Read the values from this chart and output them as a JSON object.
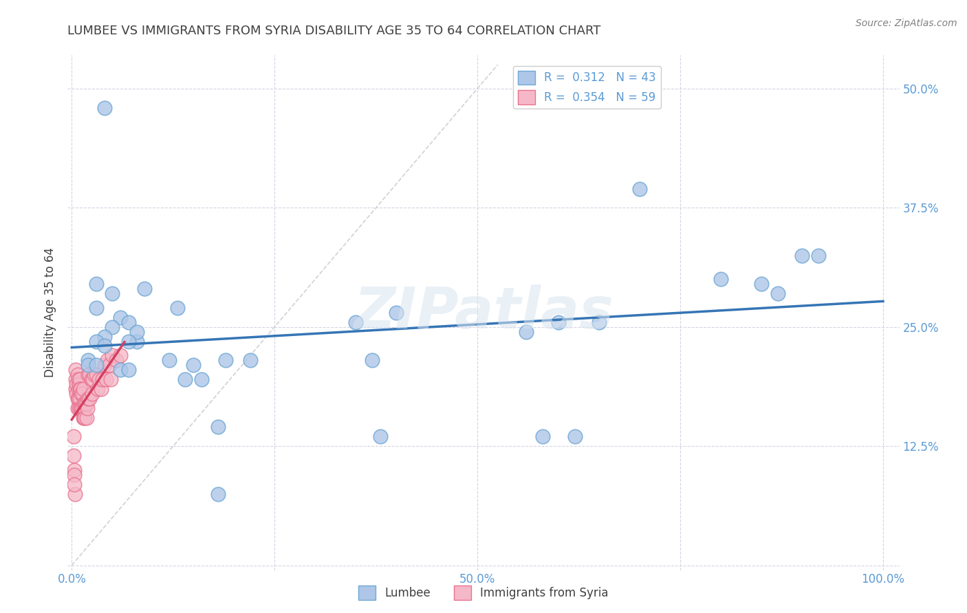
{
  "title": "LUMBEE VS IMMIGRANTS FROM SYRIA DISABILITY AGE 35 TO 64 CORRELATION CHART",
  "source": "Source: ZipAtlas.com",
  "ylabel": "Disability Age 35 to 64",
  "xlim": [
    0.0,
    1.0
  ],
  "ylim": [
    0.0,
    0.525
  ],
  "ytick_vals": [
    0.0,
    0.125,
    0.25,
    0.375,
    0.5
  ],
  "ytick_labels": [
    "",
    "12.5%",
    "25.0%",
    "37.5%",
    "50.0%"
  ],
  "xtick_vals": [
    0.0,
    0.25,
    0.5,
    0.75,
    1.0
  ],
  "xtick_labels": [
    "0.0%",
    "",
    "50.0%",
    "",
    "100.0%"
  ],
  "lumbee_color": "#aec6e8",
  "lumbee_edge": "#6fa8d4",
  "syria_color": "#f5b8c8",
  "syria_edge": "#e8728e",
  "trend_lumbee": "#3575b5",
  "trend_syria": "#d44060",
  "diagonal_color": "#cccccc",
  "tick_color": "#5b9bd5",
  "R_lumbee": 0.312,
  "N_lumbee": 43,
  "R_syria": 0.354,
  "N_syria": 59,
  "watermark": "ZIPatlas",
  "lumbee_x": [
    0.04,
    0.03,
    0.05,
    0.03,
    0.06,
    0.07,
    0.05,
    0.04,
    0.03,
    0.04,
    0.08,
    0.13,
    0.15,
    0.08,
    0.07,
    0.09,
    0.19,
    0.22,
    0.02,
    0.02,
    0.03,
    0.12,
    0.14,
    0.16,
    0.06,
    0.07,
    0.18,
    0.35,
    0.4,
    0.37,
    0.38,
    0.56,
    0.58,
    0.6,
    0.62,
    0.65,
    0.7,
    0.8,
    0.85,
    0.9,
    0.87,
    0.92,
    0.18
  ],
  "lumbee_y": [
    0.48,
    0.295,
    0.285,
    0.27,
    0.26,
    0.255,
    0.25,
    0.24,
    0.235,
    0.23,
    0.235,
    0.27,
    0.21,
    0.245,
    0.235,
    0.29,
    0.215,
    0.215,
    0.215,
    0.21,
    0.21,
    0.215,
    0.195,
    0.195,
    0.205,
    0.205,
    0.145,
    0.255,
    0.265,
    0.215,
    0.135,
    0.245,
    0.135,
    0.255,
    0.135,
    0.255,
    0.395,
    0.3,
    0.295,
    0.325,
    0.285,
    0.325,
    0.075
  ],
  "syria_x": [
    0.005,
    0.005,
    0.005,
    0.006,
    0.006,
    0.007,
    0.007,
    0.007,
    0.008,
    0.008,
    0.008,
    0.009,
    0.009,
    0.01,
    0.01,
    0.01,
    0.011,
    0.011,
    0.012,
    0.012,
    0.013,
    0.013,
    0.014,
    0.014,
    0.015,
    0.015,
    0.016,
    0.016,
    0.017,
    0.018,
    0.018,
    0.019,
    0.02,
    0.02,
    0.022,
    0.022,
    0.024,
    0.025,
    0.026,
    0.028,
    0.03,
    0.032,
    0.034,
    0.036,
    0.038,
    0.04,
    0.042,
    0.044,
    0.046,
    0.048,
    0.05,
    0.055,
    0.06,
    0.002,
    0.003,
    0.004,
    0.002,
    0.003,
    0.003
  ],
  "syria_y": [
    0.205,
    0.195,
    0.185,
    0.19,
    0.18,
    0.2,
    0.175,
    0.165,
    0.195,
    0.185,
    0.175,
    0.19,
    0.165,
    0.195,
    0.185,
    0.175,
    0.185,
    0.165,
    0.18,
    0.165,
    0.18,
    0.165,
    0.185,
    0.155,
    0.17,
    0.155,
    0.165,
    0.155,
    0.17,
    0.17,
    0.155,
    0.165,
    0.2,
    0.175,
    0.2,
    0.175,
    0.195,
    0.18,
    0.195,
    0.2,
    0.2,
    0.185,
    0.195,
    0.185,
    0.195,
    0.21,
    0.195,
    0.215,
    0.21,
    0.195,
    0.22,
    0.215,
    0.22,
    0.135,
    0.1,
    0.075,
    0.115,
    0.095,
    0.085
  ]
}
